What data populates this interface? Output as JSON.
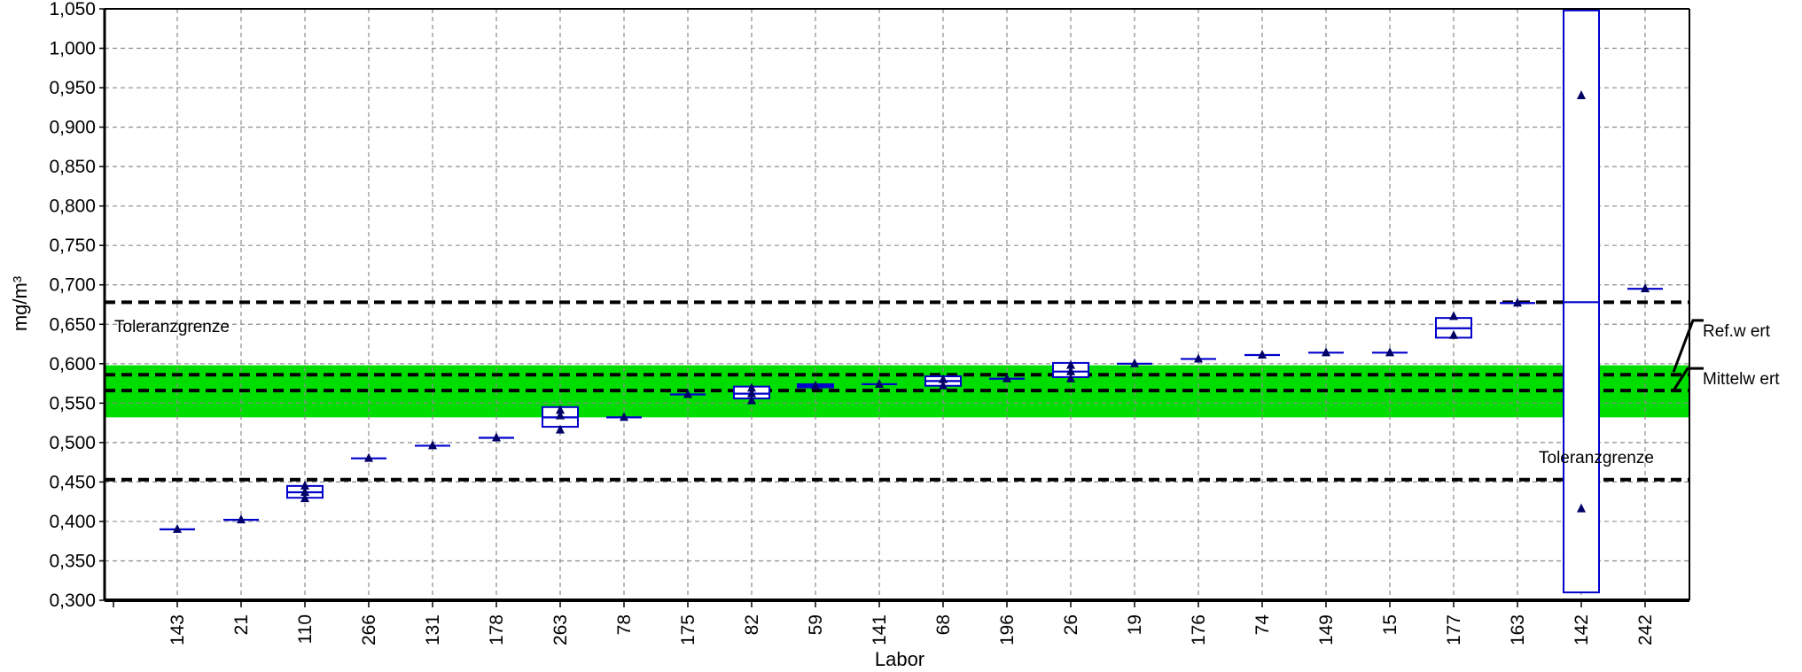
{
  "chart_data": {
    "type": "box",
    "title": "",
    "xlabel": "Labor",
    "ylabel": "mg/m³",
    "ylim": [
      0.3,
      1.05
    ],
    "yticks": [
      "0,300",
      "0,350",
      "0,400",
      "0,450",
      "0,500",
      "0,550",
      "0,600",
      "0,650",
      "0,700",
      "0,750",
      "0,800",
      "0,850",
      "0,900",
      "0,950",
      "1,000",
      "1,050"
    ],
    "grid": true,
    "reference_lines": {
      "upper_tolerance": 0.678,
      "reference_value": 0.586,
      "mean_value": 0.566,
      "lower_tolerance": 0.453
    },
    "tolerance_band": [
      0.532,
      0.598
    ],
    "band_color": "#00dd00",
    "box_color": "#0000cc",
    "point_color": "#000066",
    "annotations": {
      "upper_tolerance_label": "Toleranzgrenze",
      "lower_tolerance_label": "Toleranzgrenze",
      "ref_label": "Ref.w ert",
      "mean_label": "Mittelw ert"
    },
    "categories": [
      "143",
      "21",
      "110",
      "266",
      "131",
      "178",
      "263",
      "78",
      "175",
      "82",
      "59",
      "141",
      "68",
      "196",
      "26",
      "19",
      "176",
      "74",
      "149",
      "15",
      "177",
      "163",
      "142",
      "242"
    ],
    "boxes": [
      {
        "lab": "143",
        "low": 0.39,
        "high": 0.39,
        "median": 0.39,
        "points": [
          0.39
        ]
      },
      {
        "lab": "21",
        "low": 0.402,
        "high": 0.402,
        "median": 0.402,
        "points": [
          0.402
        ]
      },
      {
        "lab": "110",
        "low": 0.43,
        "high": 0.445,
        "median": 0.437,
        "points": [
          0.429,
          0.437,
          0.445
        ]
      },
      {
        "lab": "266",
        "low": 0.48,
        "high": 0.48,
        "median": 0.48,
        "points": [
          0.48
        ]
      },
      {
        "lab": "131",
        "low": 0.496,
        "high": 0.496,
        "median": 0.496,
        "points": [
          0.496
        ]
      },
      {
        "lab": "178",
        "low": 0.506,
        "high": 0.506,
        "median": 0.506,
        "points": [
          0.506
        ]
      },
      {
        "lab": "263",
        "low": 0.52,
        "high": 0.545,
        "median": 0.532,
        "points": [
          0.516,
          0.534,
          0.541
        ]
      },
      {
        "lab": "78",
        "low": 0.532,
        "high": 0.532,
        "median": 0.532,
        "points": [
          0.532
        ]
      },
      {
        "lab": "175",
        "low": 0.561,
        "high": 0.561,
        "median": 0.561,
        "points": [
          0.561
        ]
      },
      {
        "lab": "82",
        "low": 0.556,
        "high": 0.571,
        "median": 0.562,
        "points": [
          0.553,
          0.562,
          0.569
        ]
      },
      {
        "lab": "59",
        "low": 0.57,
        "high": 0.574,
        "median": 0.572,
        "points": [
          0.572
        ]
      },
      {
        "lab": "141",
        "low": 0.574,
        "high": 0.574,
        "median": 0.574,
        "points": [
          0.574
        ]
      },
      {
        "lab": "68",
        "low": 0.572,
        "high": 0.584,
        "median": 0.578,
        "points": [
          0.572,
          0.58
        ]
      },
      {
        "lab": "196",
        "low": 0.581,
        "high": 0.581,
        "median": 0.581,
        "points": [
          0.581
        ]
      },
      {
        "lab": "26",
        "low": 0.583,
        "high": 0.601,
        "median": 0.59,
        "points": [
          0.581,
          0.59,
          0.598
        ]
      },
      {
        "lab": "19",
        "low": 0.6,
        "high": 0.6,
        "median": 0.6,
        "points": [
          0.6
        ]
      },
      {
        "lab": "176",
        "low": 0.606,
        "high": 0.606,
        "median": 0.606,
        "points": [
          0.606
        ]
      },
      {
        "lab": "74",
        "low": 0.611,
        "high": 0.611,
        "median": 0.611,
        "points": [
          0.611
        ]
      },
      {
        "lab": "149",
        "low": 0.614,
        "high": 0.614,
        "median": 0.614,
        "points": [
          0.614
        ]
      },
      {
        "lab": "15",
        "low": 0.614,
        "high": 0.614,
        "median": 0.614,
        "points": [
          0.614
        ]
      },
      {
        "lab": "177",
        "low": 0.633,
        "high": 0.658,
        "median": 0.645,
        "points": [
          0.636,
          0.66
        ]
      },
      {
        "lab": "163",
        "low": 0.677,
        "high": 0.677,
        "median": 0.677,
        "points": [
          0.677
        ]
      },
      {
        "lab": "142",
        "low": 0.31,
        "high": 1.048,
        "median": 0.678,
        "points": [
          0.416,
          0.94
        ]
      },
      {
        "lab": "242",
        "low": 0.695,
        "high": 0.695,
        "median": 0.695,
        "points": [
          0.695
        ]
      }
    ]
  }
}
